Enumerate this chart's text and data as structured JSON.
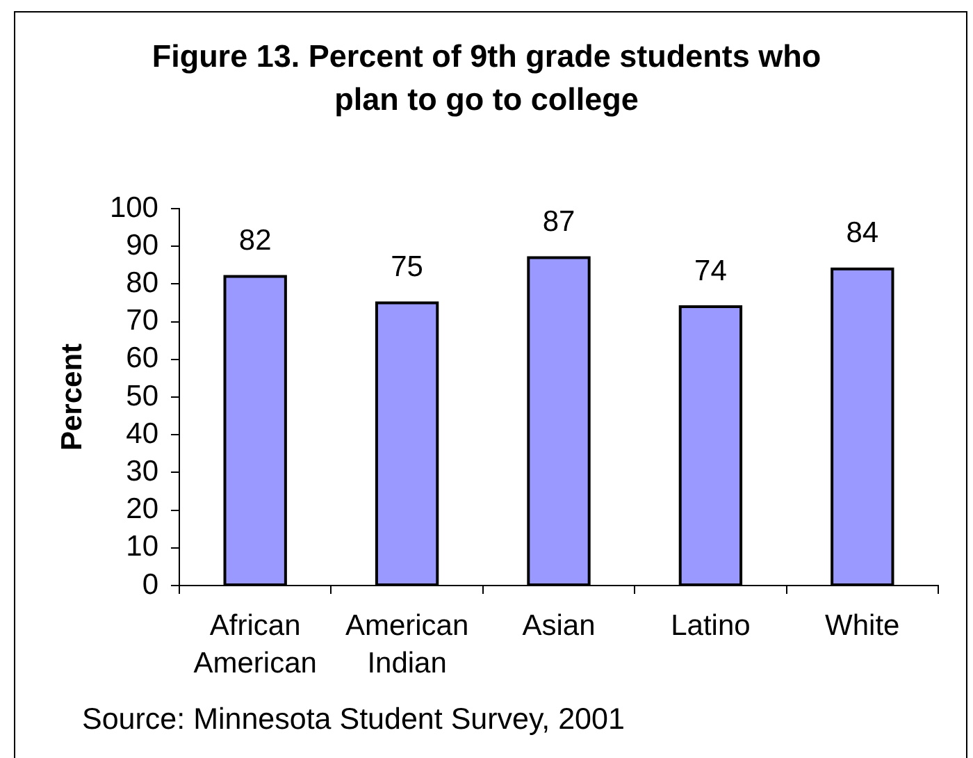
{
  "chart_data": {
    "type": "bar",
    "title": "Figure 13. Percent of 9th grade students who plan to go to college",
    "ylabel": "Percent",
    "categories": [
      "African American",
      "American Indian",
      "Asian",
      "Latino",
      "White"
    ],
    "values": [
      82,
      75,
      87,
      74,
      84
    ],
    "color": "#9999ff",
    "ylim": [
      0,
      100
    ],
    "yticks": [
      0,
      10,
      20,
      30,
      40,
      50,
      60,
      70,
      80,
      90,
      100
    ],
    "grid": false,
    "legend": false,
    "data_labels": true,
    "annotations": [
      "Source: Minnesota Student Survey, 2001"
    ]
  }
}
